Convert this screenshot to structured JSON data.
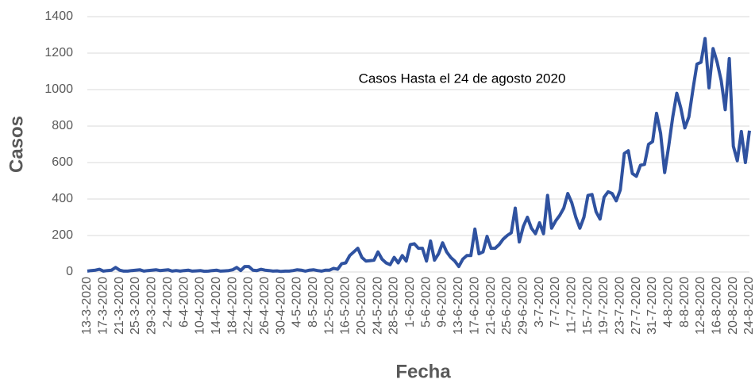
{
  "chart_data": {
    "type": "line",
    "annotation": "Casos Hasta el 24 de agosto 2020",
    "x_label": "Fecha",
    "y_label": "Casos",
    "color": "#2f52a0",
    "grid": true,
    "ylim": [
      0,
      1400
    ],
    "yticks": [
      0,
      200,
      400,
      600,
      800,
      1000,
      1200,
      1400
    ],
    "categories": [
      "13-3-2020",
      null,
      null,
      null,
      "17-3-2020",
      null,
      null,
      null,
      "21-3-2020",
      null,
      null,
      null,
      "25-3-2020",
      null,
      null,
      null,
      "29-3-2020",
      null,
      null,
      null,
      "2-4-2020",
      null,
      null,
      null,
      "6-4-2020",
      null,
      null,
      null,
      "10-4-2020",
      null,
      null,
      null,
      "14-4-2020",
      null,
      null,
      null,
      "18-4-2020",
      null,
      null,
      null,
      "22-4-2020",
      null,
      null,
      null,
      "26-4-2020",
      null,
      null,
      null,
      "30-4-2020",
      null,
      null,
      null,
      "4-5-2020",
      null,
      null,
      null,
      "8-5-2020",
      null,
      null,
      null,
      "12-5-2020",
      null,
      null,
      null,
      "16-5-2020",
      null,
      null,
      null,
      "20-5-2020",
      null,
      null,
      null,
      "24-5-2020",
      null,
      null,
      null,
      "28-5-2020",
      null,
      null,
      null,
      "1-6-2020",
      null,
      null,
      null,
      "5-6-2020",
      null,
      null,
      null,
      "9-6-2020",
      null,
      null,
      null,
      "13-6-2020",
      null,
      null,
      null,
      "17-6-2020",
      null,
      null,
      null,
      "21-6-2020",
      null,
      null,
      null,
      "25-6-2020",
      null,
      null,
      null,
      "29-6-2020",
      null,
      null,
      null,
      "3-7-2020",
      null,
      null,
      null,
      "7-7-2020",
      null,
      null,
      null,
      "11-7-2020",
      null,
      null,
      null,
      "15-7-2020",
      null,
      null,
      null,
      "19-7-2020",
      null,
      null,
      null,
      "23-7-2020",
      null,
      null,
      null,
      "27-7-2020",
      null,
      null,
      null,
      "31-7-2020",
      null,
      null,
      null,
      "4-8-2020",
      null,
      null,
      null,
      "8-8-2020",
      null,
      null,
      null,
      "12-8-2020",
      null,
      null,
      null,
      "16-8-2020",
      null,
      null,
      null,
      "20-8-2020",
      null,
      null,
      null,
      "24-8-2020"
    ],
    "values": [
      5,
      8,
      10,
      15,
      5,
      8,
      10,
      25,
      10,
      5,
      5,
      8,
      10,
      12,
      5,
      8,
      10,
      12,
      8,
      10,
      12,
      5,
      8,
      5,
      8,
      10,
      5,
      6,
      8,
      4,
      5,
      8,
      10,
      5,
      6,
      8,
      12,
      25,
      8,
      30,
      30,
      10,
      8,
      15,
      10,
      8,
      5,
      6,
      3,
      5,
      5,
      8,
      12,
      10,
      5,
      10,
      12,
      8,
      5,
      10,
      10,
      20,
      15,
      45,
      50,
      90,
      110,
      130,
      80,
      60,
      62,
      65,
      110,
      70,
      50,
      40,
      80,
      50,
      90,
      60,
      150,
      155,
      130,
      130,
      60,
      170,
      65,
      100,
      160,
      110,
      80,
      60,
      30,
      70,
      90,
      90,
      235,
      100,
      110,
      195,
      130,
      130,
      150,
      180,
      200,
      215,
      350,
      165,
      250,
      300,
      240,
      210,
      270,
      210,
      420,
      240,
      280,
      310,
      350,
      430,
      380,
      300,
      240,
      300,
      420,
      425,
      330,
      290,
      410,
      440,
      430,
      390,
      450,
      650,
      665,
      540,
      525,
      585,
      590,
      700,
      715,
      870,
      760,
      545,
      690,
      850,
      980,
      900,
      790,
      850,
      1000,
      1140,
      1150,
      1280,
      1010,
      1225,
      1150,
      1050,
      890,
      1170,
      690,
      610,
      770,
      600,
      775
    ]
  }
}
